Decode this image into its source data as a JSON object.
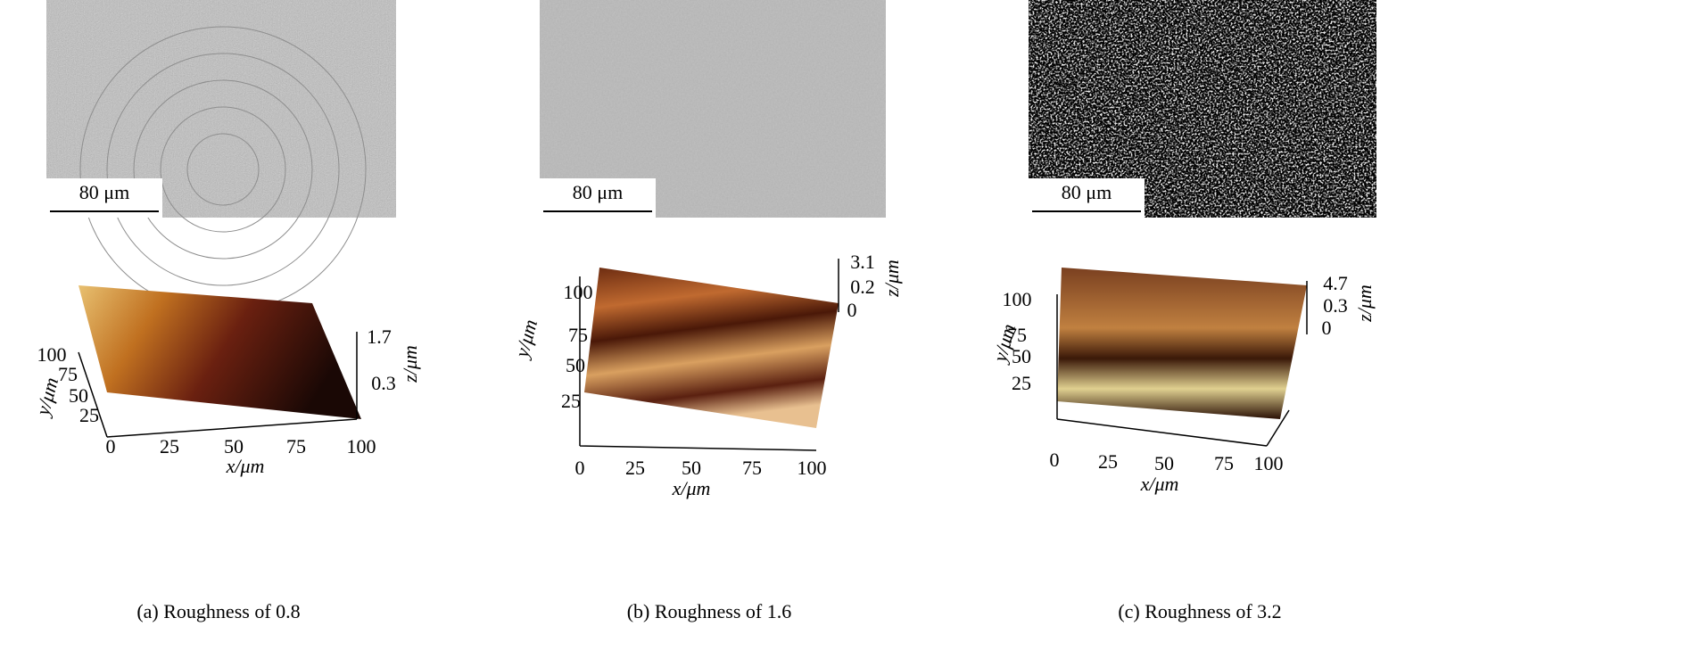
{
  "panels": [
    {
      "scale_bar": "80 μm",
      "caption": "(a) Roughness of 0.8",
      "plot": {
        "x_label": "x/μm",
        "y_label": "y/μm",
        "z_label": "z/μm",
        "x_ticks": [
          0,
          25,
          50,
          75,
          100
        ],
        "y_ticks": [
          25,
          50,
          75,
          100
        ],
        "z_ticks": [
          0.3,
          1.7
        ]
      }
    },
    {
      "scale_bar": "80 μm",
      "caption": "(b) Roughness of 1.6",
      "plot": {
        "x_label": "x/μm",
        "y_label": "y/μm",
        "z_label": "z/μm",
        "x_ticks": [
          0,
          25,
          50,
          75,
          100
        ],
        "y_ticks": [
          25,
          50,
          75,
          100
        ],
        "z_ticks": [
          0,
          0.2,
          3.1
        ]
      }
    },
    {
      "scale_bar": "80 μm",
      "caption": "(c) Roughness of 3.2",
      "plot": {
        "x_label": "x/μm",
        "y_label": "y/μm",
        "z_label": "z/μm",
        "x_ticks": [
          0,
          25,
          50,
          75,
          100
        ],
        "y_ticks": [
          25,
          50,
          75,
          100
        ],
        "z_ticks": [
          0,
          0.3,
          4.7
        ]
      }
    }
  ]
}
